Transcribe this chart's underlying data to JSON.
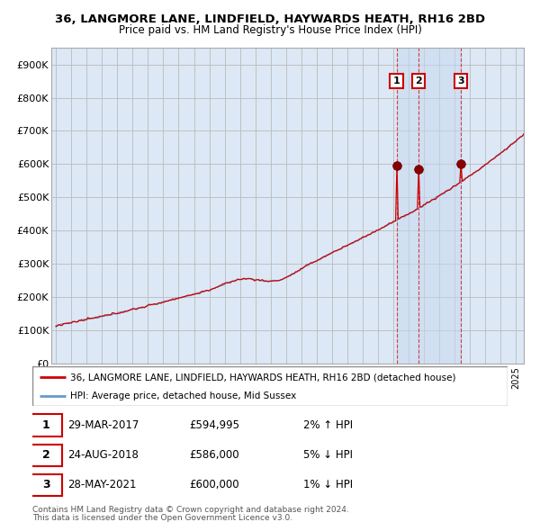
{
  "title1": "36, LANGMORE LANE, LINDFIELD, HAYWARDS HEATH, RH16 2BD",
  "title2": "Price paid vs. HM Land Registry's House Price Index (HPI)",
  "legend_line1": "36, LANGMORE LANE, LINDFIELD, HAYWARDS HEATH, RH16 2BD (detached house)",
  "legend_line2": "HPI: Average price, detached house, Mid Sussex",
  "sale1_label": "1",
  "sale1_date": "29-MAR-2017",
  "sale1_price": "£594,995",
  "sale1_hpi": "2% ↑ HPI",
  "sale2_label": "2",
  "sale2_date": "24-AUG-2018",
  "sale2_price": "£586,000",
  "sale2_hpi": "5% ↓ HPI",
  "sale3_label": "3",
  "sale3_date": "28-MAY-2021",
  "sale3_price": "£600,000",
  "sale3_hpi": "1% ↓ HPI",
  "footer1": "Contains HM Land Registry data © Crown copyright and database right 2024.",
  "footer2": "This data is licensed under the Open Government Licence v3.0.",
  "line_color": "#cc0000",
  "hpi_color": "#6699cc",
  "background_color": "#ffffff",
  "chart_bg": "#dce8f5",
  "grid_color": "#bbbbbb",
  "ylim": [
    0,
    950000
  ],
  "yticks": [
    0,
    100000,
    200000,
    300000,
    400000,
    500000,
    600000,
    700000,
    800000,
    900000
  ],
  "sale_marker_color": "#880000",
  "sale_marker_size": 7,
  "annotation_box_color": "#cc0000",
  "sale1_year": 2017.21,
  "sale2_year": 2018.63,
  "sale3_year": 2021.41,
  "sale1_price_val": 594995,
  "sale2_price_val": 586000,
  "sale3_price_val": 600000
}
